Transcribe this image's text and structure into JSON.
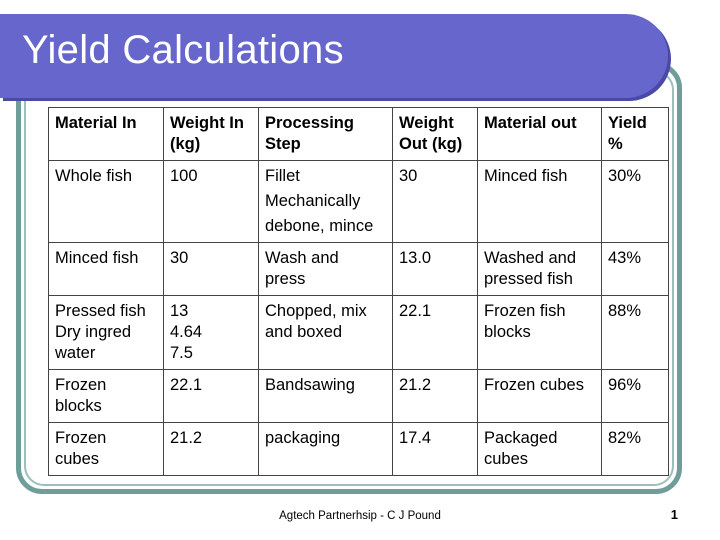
{
  "slide": {
    "title": "Yield Calculations",
    "footer": "Agtech Partnerhsip - C J Pound",
    "page_number": "1"
  },
  "table": {
    "headers": [
      [
        "Material In"
      ],
      [
        "Weight In",
        "(kg)"
      ],
      [
        "Processing",
        "Step"
      ],
      [
        "Weight",
        "Out (kg)"
      ],
      [
        "Material out"
      ],
      [
        "Yield",
        "%"
      ]
    ],
    "rows": [
      [
        [
          "Whole fish"
        ],
        [
          "100"
        ],
        [
          "Fillet",
          "Mechanically",
          "debone, mince"
        ],
        [
          "30"
        ],
        [
          "Minced fish"
        ],
        [
          "30%"
        ]
      ],
      [
        [
          "Minced fish"
        ],
        [
          "30"
        ],
        [
          "Wash and",
          "press"
        ],
        [
          "13.0"
        ],
        [
          "Washed and",
          "pressed fish"
        ],
        [
          "43%"
        ]
      ],
      [
        [
          "Pressed fish",
          "Dry ingred",
          "water"
        ],
        [
          "13",
          "4.64",
          "7.5"
        ],
        [
          "Chopped, mix",
          "and boxed"
        ],
        [
          "22.1"
        ],
        [
          "Frozen fish",
          "blocks"
        ],
        [
          "88%"
        ]
      ],
      [
        [
          "Frozen",
          "blocks"
        ],
        [
          "22.1"
        ],
        [
          "Bandsawing"
        ],
        [
          "21.2"
        ],
        [
          "Frozen cubes"
        ],
        [
          "96%"
        ]
      ],
      [
        [
          "Frozen",
          "cubes"
        ],
        [
          "21.2"
        ],
        [
          "packaging"
        ],
        [
          "17.4"
        ],
        [
          "Packaged",
          "cubes"
        ],
        [
          "82%"
        ]
      ]
    ]
  },
  "colors": {
    "title_bar": "#6666cc",
    "frame": "#6f9e9a"
  }
}
